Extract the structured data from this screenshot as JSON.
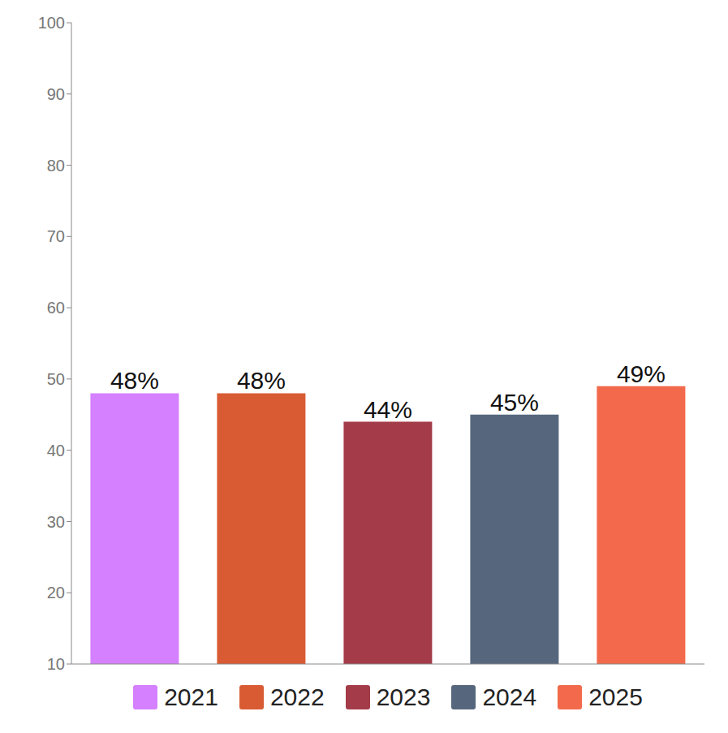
{
  "chart_data": {
    "type": "bar",
    "categories": [
      "2021",
      "2022",
      "2023",
      "2024",
      "2025"
    ],
    "values": [
      48,
      48,
      44,
      45,
      49
    ],
    "value_labels": [
      "48%",
      "48%",
      "44%",
      "45%",
      "49%"
    ],
    "colors": [
      "#d580ff",
      "#d95b33",
      "#a33b48",
      "#56677d",
      "#f26a4b"
    ],
    "ylim": [
      10,
      100
    ],
    "yticks": [
      10,
      20,
      30,
      40,
      50,
      60,
      70,
      80,
      90,
      100
    ],
    "grid": false,
    "data_labels": true,
    "tick_labels": "y",
    "legend": "bottom"
  }
}
